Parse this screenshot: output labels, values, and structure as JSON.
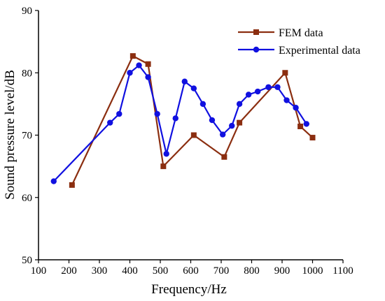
{
  "chart_data": {
    "type": "line",
    "xlabel": "Frequency/Hz",
    "ylabel": "Sound pressure level/dB",
    "xlim": [
      100,
      1100
    ],
    "ylim": [
      50,
      90
    ],
    "xticks": [
      100,
      200,
      300,
      400,
      500,
      600,
      700,
      800,
      900,
      1000,
      1100
    ],
    "yticks": [
      50,
      60,
      70,
      80,
      90
    ],
    "legend": "top-right",
    "grid": false,
    "series": [
      {
        "name": "FEM data",
        "color": "#8b2e10",
        "marker": "square",
        "x": [
          210,
          410,
          460,
          510,
          610,
          710,
          760,
          910,
          960,
          1000
        ],
        "y": [
          62.0,
          82.7,
          81.4,
          65.0,
          70.0,
          66.5,
          72.0,
          80.0,
          71.4,
          69.6
        ]
      },
      {
        "name": "Experimental data",
        "color": "#1010e0",
        "marker": "circle",
        "x": [
          150,
          335,
          365,
          400,
          430,
          460,
          490,
          520,
          550,
          580,
          610,
          640,
          670,
          705,
          735,
          760,
          790,
          820,
          855,
          885,
          915,
          945,
          980
        ],
        "y": [
          62.6,
          72.0,
          73.4,
          80.0,
          81.2,
          79.3,
          73.4,
          67.0,
          72.7,
          78.6,
          77.5,
          75.0,
          72.4,
          70.1,
          71.5,
          75.0,
          76.5,
          77.0,
          77.7,
          77.7,
          75.6,
          74.4,
          71.8
        ]
      }
    ]
  }
}
